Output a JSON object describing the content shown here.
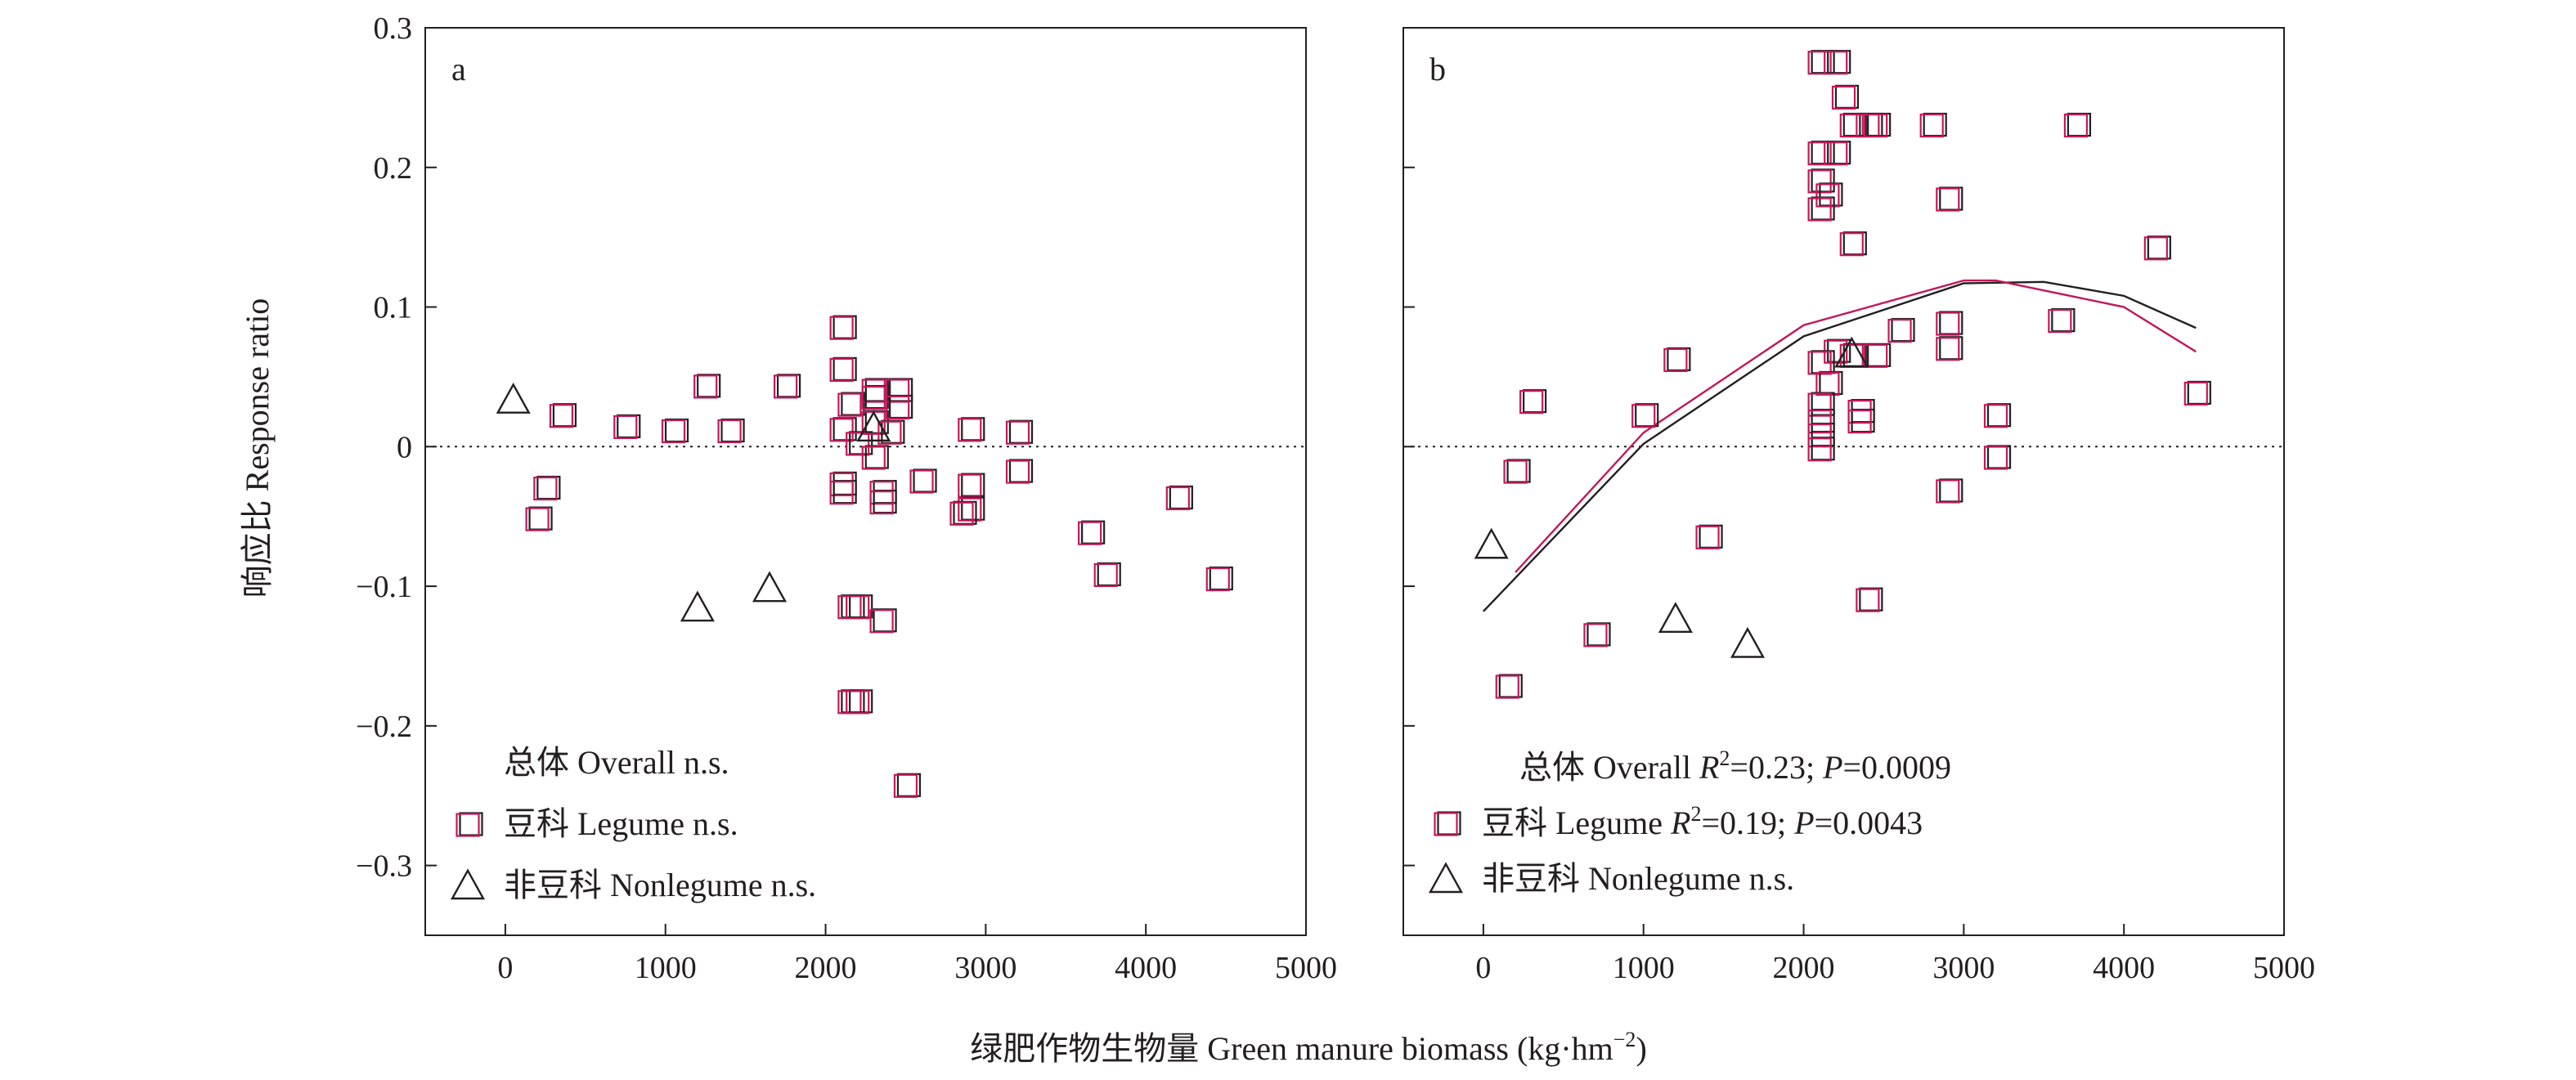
{
  "figure": {
    "xlabel": "绿肥作物生物量 Green manure biomass (kg·hm",
    "xlabel_sup": "−2",
    "xlabel_close": ")",
    "ylabel": "响应比 Response ratio"
  },
  "colors": {
    "axis": "#231f20",
    "legume": "#c2185b",
    "legume_shadow": "#231f20",
    "overall_curve": "#231f20",
    "legume_curve": "#c2185b"
  },
  "chart_data": [
    {
      "type": "scatter",
      "panel_label": "a",
      "xlim": [
        -500,
        5000
      ],
      "ylim": [
        -0.35,
        0.3
      ],
      "x_ticks": [
        0,
        1000,
        2000,
        3000,
        4000,
        5000
      ],
      "x_tick_labels": [
        "0",
        "1000",
        "2000",
        "3000",
        "4000",
        "5000"
      ],
      "y_ticks": [
        -0.3,
        -0.2,
        -0.1,
        0,
        0.1,
        0.2,
        0.3
      ],
      "y_tick_labels": [
        "−0.3",
        "−0.2",
        "−0.1",
        "0",
        "0.1",
        "0.2",
        "0.3"
      ],
      "reference_line_y": 0,
      "grid": false,
      "legend_position": "bottom-left",
      "stats": [
        {
          "text": "总体 Overall n.s."
        },
        {
          "text": "豆科 Legume n.s."
        },
        {
          "text": "非豆科 Nonlegume n.s."
        }
      ],
      "series": [
        {
          "name": "豆科 Legume",
          "marker": "square",
          "points": [
            [
              350,
              0.022
            ],
            [
              750,
              0.014
            ],
            [
              1050,
              0.011
            ],
            [
              1250,
              0.043
            ],
            [
              1400,
              0.011
            ],
            [
              1750,
              0.043
            ],
            [
              250,
              -0.03
            ],
            [
              200,
              -0.052
            ],
            [
              2100,
              0.085
            ],
            [
              2100,
              0.055
            ],
            [
              2100,
              0.012
            ],
            [
              2100,
              -0.027
            ],
            [
              2100,
              -0.033
            ],
            [
              2150,
              0.03
            ],
            [
              2200,
              0.002
            ],
            [
              2300,
              0.04
            ],
            [
              2300,
              0.017
            ],
            [
              2300,
              0.035
            ],
            [
              2300,
              -0.008
            ],
            [
              2400,
              0.01
            ],
            [
              2450,
              0.04
            ],
            [
              2450,
              0.028
            ],
            [
              2350,
              -0.033
            ],
            [
              2350,
              -0.04
            ],
            [
              2600,
              -0.025
            ],
            [
              2900,
              0.012
            ],
            [
              2900,
              -0.028
            ],
            [
              2900,
              -0.045
            ],
            [
              2850,
              -0.048
            ],
            [
              3200,
              0.01
            ],
            [
              3200,
              -0.018
            ],
            [
              2150,
              -0.115
            ],
            [
              2200,
              -0.115
            ],
            [
              2350,
              -0.125
            ],
            [
              2150,
              -0.183
            ],
            [
              2200,
              -0.183
            ],
            [
              2500,
              -0.243
            ],
            [
              3650,
              -0.062
            ],
            [
              3750,
              -0.092
            ],
            [
              4200,
              -0.037
            ],
            [
              4450,
              -0.095
            ]
          ]
        },
        {
          "name": "非豆科 Nonlegume",
          "marker": "triangle",
          "points": [
            [
              50,
              0.032
            ],
            [
              1200,
              -0.117
            ],
            [
              1650,
              -0.103
            ],
            [
              2300,
              0.012
            ]
          ]
        }
      ]
    },
    {
      "type": "scatter",
      "panel_label": "b",
      "xlim": [
        -500,
        5000
      ],
      "ylim": [
        -0.35,
        0.3
      ],
      "x_ticks": [
        0,
        1000,
        2000,
        3000,
        4000,
        5000
      ],
      "x_tick_labels": [
        "0",
        "1000",
        "2000",
        "3000",
        "4000",
        "5000"
      ],
      "y_ticks": [
        -0.3,
        -0.2,
        -0.1,
        0,
        0.1,
        0.2,
        0.3
      ],
      "y_tick_labels": [
        "−0.3",
        "−0.2",
        "−0.1",
        "0",
        "0.1",
        "0.2",
        "0.3"
      ],
      "reference_line_y": 0,
      "grid": false,
      "legend_position": "bottom-left",
      "stats": [
        {
          "label": "总体 Overall ",
          "r": "R",
          "r_sup": "2",
          "r_val": "=0.23; ",
          "p": "P",
          "p_val": "=0.0009"
        },
        {
          "label": "豆科 Legume ",
          "r": "R",
          "r_sup": "2",
          "r_val": "=0.19; ",
          "p": "P",
          "p_val": "=0.0043"
        },
        {
          "label": "非豆科 Nonlegume n.s."
        }
      ],
      "series": [
        {
          "name": "豆科 Legume",
          "marker": "square",
          "points": [
            [
              2100,
              0.275
            ],
            [
              2200,
              0.275
            ],
            [
              2250,
              0.25
            ],
            [
              2100,
              0.21
            ],
            [
              2200,
              0.21
            ],
            [
              2300,
              0.23
            ],
            [
              2400,
              0.23
            ],
            [
              2450,
              0.23
            ],
            [
              2800,
              0.23
            ],
            [
              3700,
              0.23
            ],
            [
              2100,
              0.19
            ],
            [
              2150,
              0.18
            ],
            [
              2100,
              0.17
            ],
            [
              2900,
              0.177
            ],
            [
              2300,
              0.145
            ],
            [
              4200,
              0.142
            ],
            [
              2600,
              0.083
            ],
            [
              2900,
              0.088
            ],
            [
              3600,
              0.09
            ],
            [
              2900,
              0.07
            ],
            [
              2200,
              0.068
            ],
            [
              2300,
              0.065
            ],
            [
              2450,
              0.065
            ],
            [
              1200,
              0.062
            ],
            [
              2100,
              0.06
            ],
            [
              2150,
              0.045
            ],
            [
              2100,
              0.03
            ],
            [
              2350,
              0.025
            ],
            [
              2350,
              0.018
            ],
            [
              2100,
              0.018
            ],
            [
              2100,
              0.008
            ],
            [
              2100,
              -0.002
            ],
            [
              3200,
              0.022
            ],
            [
              3200,
              -0.008
            ],
            [
              1000,
              0.022
            ],
            [
              300,
              0.032
            ],
            [
              200,
              -0.018
            ],
            [
              2900,
              -0.032
            ],
            [
              4450,
              0.038
            ],
            [
              1400,
              -0.065
            ],
            [
              2400,
              -0.11
            ],
            [
              700,
              -0.135
            ],
            [
              150,
              -0.172
            ]
          ]
        },
        {
          "name": "非豆科 Nonlegume",
          "marker": "triangle",
          "points": [
            [
              50,
              -0.072
            ],
            [
              1200,
              -0.125
            ],
            [
              1650,
              -0.143
            ],
            [
              2300,
              0.065
            ]
          ]
        }
      ],
      "fits": [
        {
          "name": "总体 Overall",
          "curve": [
            [
              0,
              -0.118
            ],
            [
              1000,
              0.002
            ],
            [
              2000,
              0.079
            ],
            [
              3000,
              0.117
            ],
            [
              3500,
              0.118
            ],
            [
              4000,
              0.108
            ],
            [
              4450,
              0.085
            ]
          ]
        },
        {
          "name": "豆科 Legume",
          "curve": [
            [
              200,
              -0.09
            ],
            [
              1000,
              0.01
            ],
            [
              2000,
              0.087
            ],
            [
              3000,
              0.119
            ],
            [
              3200,
              0.119
            ],
            [
              4000,
              0.1
            ],
            [
              4450,
              0.068
            ]
          ]
        }
      ]
    }
  ]
}
